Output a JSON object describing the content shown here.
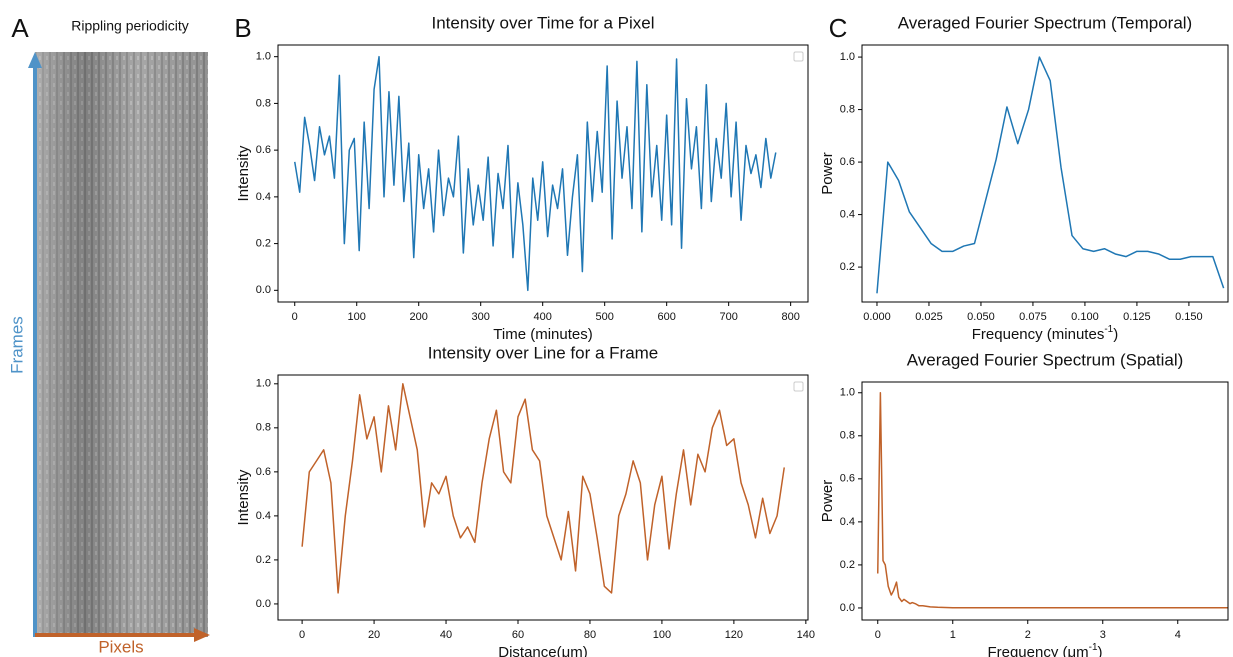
{
  "panel_labels": [
    "A",
    "B",
    "C"
  ],
  "image_panel": {
    "title": "Rippling periodicity",
    "y_axis": "Frames",
    "x_axis": "Pixels"
  },
  "chart_data": [
    {
      "type": "line",
      "title": "Intensity over Time for a Pixel",
      "xlabel": "Time (minutes)",
      "ylabel": "Intensity",
      "xlim": [
        -27,
        828
      ],
      "ylim": [
        -0.05,
        1.05
      ],
      "xticks": [
        0,
        100,
        200,
        300,
        400,
        500,
        600,
        700,
        800
      ],
      "yticks": [
        {
          "value": 0,
          "label": "0.0"
        },
        0.2,
        0.4,
        0.6,
        0.8,
        {
          "value": 1,
          "label": "1.0"
        }
      ],
      "series": [
        {
          "color": "#1f77b4",
          "x": [
            0,
            8,
            16,
            24,
            32,
            40,
            48,
            56,
            64,
            72,
            80,
            88,
            96,
            104,
            112,
            120,
            128,
            136,
            144,
            152,
            160,
            168,
            176,
            184,
            192,
            200,
            208,
            216,
            224,
            232,
            240,
            248,
            256,
            264,
            272,
            280,
            288,
            296,
            304,
            312,
            320,
            328,
            336,
            344,
            352,
            360,
            368,
            376,
            384,
            392,
            400,
            408,
            416,
            424,
            432,
            440,
            448,
            456,
            464,
            472,
            480,
            488,
            496,
            504,
            512,
            520,
            528,
            536,
            544,
            552,
            560,
            568,
            576,
            584,
            592,
            600,
            608,
            616,
            624,
            632,
            640,
            648,
            656,
            664,
            672,
            680,
            688,
            696,
            704,
            712,
            720,
            728,
            736,
            744,
            752,
            760,
            768,
            776
          ],
          "values": [
            0.55,
            0.42,
            0.74,
            0.62,
            0.47,
            0.7,
            0.58,
            0.66,
            0.48,
            0.92,
            0.2,
            0.6,
            0.65,
            0.17,
            0.72,
            0.35,
            0.86,
            1.0,
            0.4,
            0.85,
            0.45,
            0.83,
            0.38,
            0.63,
            0.14,
            0.58,
            0.35,
            0.52,
            0.25,
            0.6,
            0.32,
            0.48,
            0.4,
            0.66,
            0.16,
            0.52,
            0.28,
            0.45,
            0.3,
            0.57,
            0.19,
            0.5,
            0.35,
            0.62,
            0.14,
            0.46,
            0.28,
            0.0,
            0.48,
            0.3,
            0.55,
            0.23,
            0.45,
            0.35,
            0.52,
            0.15,
            0.4,
            0.58,
            0.08,
            0.72,
            0.38,
            0.68,
            0.42,
            0.96,
            0.22,
            0.81,
            0.48,
            0.7,
            0.35,
            0.98,
            0.25,
            0.88,
            0.4,
            0.62,
            0.3,
            0.75,
            0.28,
            0.99,
            0.18,
            0.82,
            0.52,
            0.7,
            0.35,
            0.88,
            0.38,
            0.65,
            0.48,
            0.8,
            0.4,
            0.72,
            0.3,
            0.62,
            0.5,
            0.58,
            0.44,
            0.65,
            0.48,
            0.59
          ]
        }
      ]
    },
    {
      "type": "line",
      "title": "Intensity over Line for a Frame",
      "xlabel": "Distance(μm)",
      "ylabel": "Intensity",
      "xlim": [
        -6.7,
        140.6
      ],
      "ylim": [
        -0.073,
        1.04
      ],
      "xticks": [
        0,
        20,
        40,
        60,
        80,
        100,
        120,
        140
      ],
      "yticks": [
        {
          "value": 0,
          "label": "0.0"
        },
        0.2,
        0.4,
        0.6,
        0.8,
        {
          "value": 1,
          "label": "1.0"
        }
      ],
      "series": [
        {
          "color": "#c0622a",
          "x": [
            0,
            2,
            4,
            6,
            8,
            10,
            12,
            14,
            16,
            18,
            20,
            22,
            24,
            26,
            28,
            30,
            32,
            34,
            36,
            38,
            40,
            42,
            44,
            46,
            48,
            50,
            52,
            54,
            56,
            58,
            60,
            62,
            64,
            66,
            68,
            70,
            72,
            74,
            76,
            78,
            80,
            82,
            84,
            86,
            88,
            90,
            92,
            94,
            96,
            98,
            100,
            102,
            104,
            106,
            108,
            110,
            112,
            114,
            116,
            118,
            120,
            122,
            124,
            126,
            128,
            130,
            132,
            134
          ],
          "values": [
            0.26,
            0.6,
            0.65,
            0.7,
            0.55,
            0.05,
            0.4,
            0.65,
            0.95,
            0.75,
            0.85,
            0.6,
            0.9,
            0.7,
            1.0,
            0.85,
            0.7,
            0.35,
            0.55,
            0.5,
            0.58,
            0.4,
            0.3,
            0.35,
            0.28,
            0.55,
            0.75,
            0.88,
            0.6,
            0.55,
            0.85,
            0.93,
            0.7,
            0.65,
            0.4,
            0.3,
            0.2,
            0.42,
            0.15,
            0.58,
            0.5,
            0.3,
            0.08,
            0.05,
            0.4,
            0.5,
            0.65,
            0.55,
            0.2,
            0.45,
            0.58,
            0.25,
            0.5,
            0.7,
            0.45,
            0.68,
            0.6,
            0.8,
            0.88,
            0.72,
            0.75,
            0.55,
            0.45,
            0.3,
            0.48,
            0.32,
            0.4,
            0.62
          ]
        }
      ]
    },
    {
      "type": "line",
      "title": "Averaged Fourier Spectrum (Temporal)",
      "xlabel_parts": [
        "Frequency (minutes",
        "-1",
        ")"
      ],
      "ylabel": "Power",
      "xlim": [
        -0.0072,
        0.1688
      ],
      "ylim": [
        0.067,
        1.046
      ],
      "xticks": [
        {
          "value": 0,
          "label": "0.000"
        },
        0.025,
        {
          "value": 0.05,
          "label": "0.050"
        },
        0.075,
        {
          "value": 0.1,
          "label": "0.100"
        },
        0.125,
        {
          "value": 0.15,
          "label": "0.150"
        }
      ],
      "yticks": [
        0.2,
        0.4,
        0.6,
        0.8,
        {
          "value": 1,
          "label": "1.0"
        }
      ],
      "series": [
        {
          "color": "#1f77b4",
          "x": [
            0,
            0.0052,
            0.0104,
            0.0156,
            0.0208,
            0.026,
            0.0313,
            0.0365,
            0.0417,
            0.0469,
            0.0521,
            0.0573,
            0.0625,
            0.0677,
            0.0729,
            0.0781,
            0.0833,
            0.0885,
            0.0938,
            0.099,
            0.1042,
            0.1094,
            0.1146,
            0.1198,
            0.125,
            0.1302,
            0.1354,
            0.1406,
            0.1458,
            0.151,
            0.1563,
            0.1615,
            0.1667
          ],
          "values": [
            0.1,
            0.6,
            0.53,
            0.41,
            0.35,
            0.29,
            0.26,
            0.26,
            0.28,
            0.29,
            0.45,
            0.61,
            0.81,
            0.67,
            0.8,
            1.0,
            0.91,
            0.58,
            0.32,
            0.27,
            0.26,
            0.27,
            0.25,
            0.24,
            0.26,
            0.26,
            0.25,
            0.23,
            0.23,
            0.24,
            0.24,
            0.24,
            0.12
          ]
        }
      ]
    },
    {
      "type": "line",
      "title": "Averaged Fourier Spectrum (Spatial)",
      "xlabel_parts": [
        "Frequency (μm",
        "-1",
        ")"
      ],
      "ylabel": "Power",
      "xlim": [
        -0.21,
        4.67
      ],
      "ylim": [
        -0.056,
        1.05
      ],
      "xticks": [
        0,
        1,
        2,
        3,
        4
      ],
      "yticks": [
        {
          "value": 0,
          "label": "0.0"
        },
        0.2,
        0.4,
        0.6,
        0.8,
        {
          "value": 1,
          "label": "1.0"
        }
      ],
      "series": [
        {
          "color": "#c0622a",
          "x": [
            0,
            0.035,
            0.07,
            0.1,
            0.14,
            0.18,
            0.21,
            0.25,
            0.28,
            0.32,
            0.35,
            0.39,
            0.43,
            0.46,
            0.5,
            0.55,
            0.6,
            0.7,
            0.8,
            0.9,
            1.0,
            1.5,
            2,
            3,
            4,
            4.67
          ],
          "values": [
            0.16,
            1.0,
            0.22,
            0.2,
            0.1,
            0.06,
            0.08,
            0.12,
            0.05,
            0.03,
            0.04,
            0.03,
            0.02,
            0.025,
            0.02,
            0.01,
            0.01,
            0.005,
            0.003,
            0.002,
            0.001,
            0.001,
            0.001,
            0.001,
            0.001,
            0.001
          ]
        }
      ]
    }
  ]
}
